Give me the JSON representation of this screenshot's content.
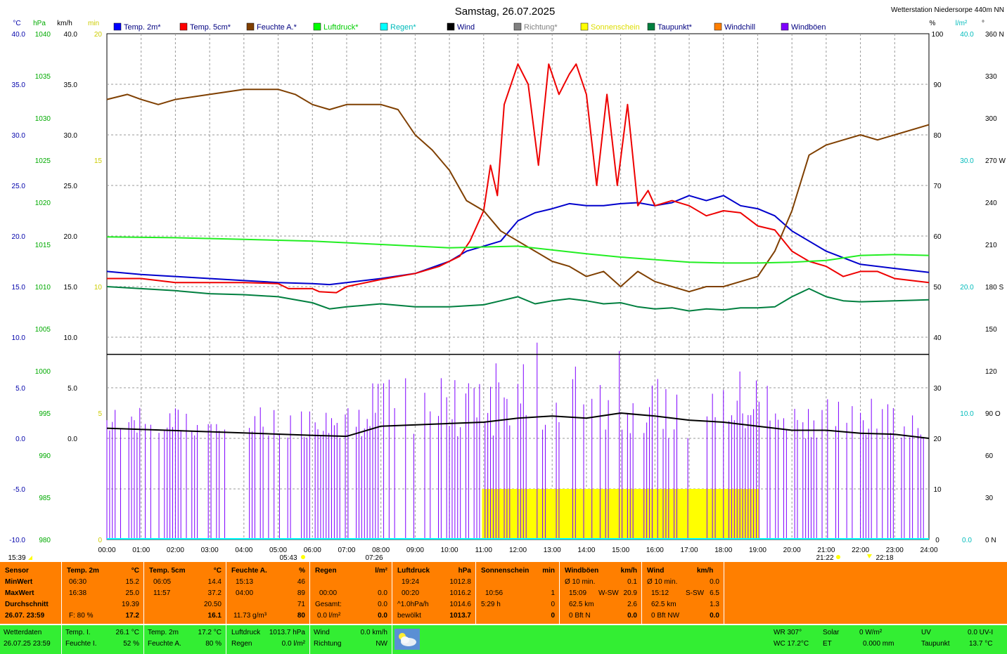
{
  "header": {
    "date_title": "Samstag, 26.07.2025",
    "station": "Wetterstation Niedersorpe 440m NN"
  },
  "units": {
    "celsius": "°C",
    "hpa": "hPa",
    "kmh": "km/h",
    "min": "min",
    "percent": "%",
    "lm2": "l/m²",
    "degree": "°"
  },
  "legend": [
    {
      "label": "Temp. 2m*",
      "color": "#0000ff"
    },
    {
      "label": "Temp. 5cm*",
      "color": "#ff0000"
    },
    {
      "label": "Feuchte A.*",
      "color": "#7f3f00"
    },
    {
      "label": "Luftdruck*",
      "color": "#00ff00"
    },
    {
      "label": "Regen*",
      "color": "#00ffff"
    },
    {
      "label": "Wind",
      "color": "#000000"
    },
    {
      "label": "Richtung*",
      "color": "#808080"
    },
    {
      "label": "Sonnenschein",
      "color": "#ffff00"
    },
    {
      "label": "Taupunkt*",
      "color": "#007f3f"
    },
    {
      "label": "Windchill",
      "color": "#ff7f00"
    },
    {
      "label": "Windböen",
      "color": "#7f00ff"
    }
  ],
  "axes": {
    "celsius_ticks": [
      "40.0",
      "35.0",
      "30.0",
      "25.0",
      "20.0",
      "15.0",
      "10.0",
      "5.0",
      "0.0",
      "-5.0",
      "-10.0"
    ],
    "hpa_ticks": [
      "1040",
      "1035",
      "1030",
      "1025",
      "1020",
      "1015",
      "1010",
      "1005",
      "1000",
      "995",
      "990",
      "985",
      "980"
    ],
    "kmh_ticks": [
      "40.0",
      "35.0",
      "30.0",
      "25.0",
      "20.0",
      "15.0",
      "10.0",
      "5.0",
      "0.0"
    ],
    "min_ticks": [
      "20",
      "15",
      "10",
      "5",
      "0"
    ],
    "percent_ticks": [
      "100",
      "90",
      "80",
      "70",
      "60",
      "50",
      "40",
      "30",
      "20",
      "10",
      "0"
    ],
    "rain_ticks": [
      "40.0",
      "30.0",
      "20.0",
      "10.0",
      "0.0"
    ],
    "direction_ticks": [
      "360 N",
      "330",
      "300",
      "270 W",
      "240",
      "210",
      "180 S",
      "150",
      "120",
      "90 O",
      "60",
      "30",
      "0 N"
    ],
    "time_ticks": [
      "00:00",
      "01:00",
      "02:00",
      "03:00",
      "04:00",
      "05:00",
      "06:00",
      "07:00",
      "08:00",
      "09:00",
      "10:00",
      "11:00",
      "12:00",
      "13:00",
      "14:00",
      "15:00",
      "16:00",
      "17:00",
      "18:00",
      "19:00",
      "20:00",
      "21:00",
      "22:00",
      "23:00",
      "24:00"
    ]
  },
  "markers": {
    "left_time": "15:39",
    "sunrise": "05:43",
    "moonrise": "07:26",
    "sunset": "21:22",
    "moonset": "22:18"
  },
  "chart_data": {
    "type": "line",
    "x_range": [
      0,
      24
    ],
    "temp_range": [
      -10,
      40
    ],
    "percent_range": [
      0,
      100
    ],
    "series": [
      {
        "name": "Temp. 2m*",
        "x": [
          0,
          1,
          2,
          3,
          4,
          5,
          6,
          6.5,
          7,
          8,
          9,
          10,
          10.5,
          11,
          11.5,
          12,
          12.5,
          13,
          13.5,
          14,
          14.5,
          15,
          15.5,
          16,
          16.5,
          17,
          17.5,
          18,
          18.5,
          19,
          19.5,
          20,
          21,
          22,
          23,
          24
        ],
        "y": [
          16.5,
          16.2,
          16.0,
          15.8,
          15.6,
          15.4,
          15.3,
          15.2,
          15.4,
          15.8,
          16.3,
          17.5,
          18.5,
          19.0,
          19.5,
          21.5,
          22.3,
          22.7,
          23.2,
          23.0,
          23.0,
          23.2,
          23.3,
          23.0,
          23.3,
          24.0,
          23.5,
          24.0,
          23.0,
          22.7,
          22.0,
          20.5,
          18.5,
          17.2,
          16.8,
          16.4
        ]
      },
      {
        "name": "Temp. 5cm*",
        "x": [
          0,
          1,
          2,
          3,
          4,
          5,
          5.3,
          6,
          6.2,
          6.7,
          7,
          8,
          9,
          9.7,
          10.3,
          10.6,
          11,
          11.2,
          11.4,
          11.6,
          12,
          12.3,
          12.6,
          12.9,
          13.2,
          13.5,
          13.7,
          14,
          14.3,
          14.6,
          14.9,
          15.2,
          15.5,
          15.8,
          16,
          16.5,
          17,
          17.5,
          18,
          18.5,
          19,
          19.5,
          20,
          20.5,
          21,
          21.5,
          22,
          22.5,
          23,
          24
        ],
        "y": [
          15.8,
          15.8,
          15.4,
          15.4,
          15.4,
          15.3,
          14.8,
          14.8,
          14.5,
          14.4,
          15.0,
          15.7,
          16.3,
          17.0,
          18.0,
          19.5,
          22.5,
          27.0,
          24.0,
          33.0,
          37.0,
          35.0,
          27.0,
          37.0,
          34.0,
          36.0,
          37.0,
          34.0,
          25.0,
          34.0,
          25.0,
          33.0,
          23.0,
          24.5,
          23.0,
          23.5,
          23.0,
          22.0,
          22.5,
          22.3,
          21.0,
          20.6,
          18.5,
          17.5,
          17.0,
          16.0,
          16.5,
          16.5,
          15.8,
          15.4
        ]
      },
      {
        "name": "Feuchte A.*",
        "x": [
          0,
          0.6,
          1,
          1.5,
          2,
          3,
          4,
          5,
          5.5,
          6,
          6.5,
          7,
          8,
          8.5,
          9,
          9.5,
          10,
          10.5,
          11,
          11.5,
          12,
          12.5,
          13,
          13.5,
          14,
          14.5,
          15,
          15.5,
          16,
          16.5,
          17,
          17.5,
          18,
          18.5,
          19,
          19.5,
          20,
          20.5,
          21,
          21.5,
          22,
          22.5,
          23,
          24
        ],
        "y": [
          87,
          88,
          87,
          86,
          87,
          88,
          89,
          89,
          88,
          86,
          85,
          86,
          86,
          85,
          80,
          77,
          73,
          67,
          65,
          61,
          59,
          57,
          55,
          54,
          52,
          53,
          50,
          53,
          51,
          50,
          49,
          50,
          50,
          51,
          52,
          57,
          65,
          76,
          78,
          79,
          80,
          79,
          80,
          82
        ]
      },
      {
        "name": "Luftdruck*",
        "x": [
          0,
          2,
          4,
          6,
          8,
          10,
          12,
          14,
          15,
          16,
          17,
          18,
          19,
          20,
          21,
          22,
          23,
          24
        ],
        "y": [
          1015.9,
          1015.8,
          1015.6,
          1015.4,
          1015.0,
          1014.6,
          1014.8,
          1013.9,
          1013.5,
          1013.2,
          1012.9,
          1012.8,
          1012.8,
          1012.9,
          1013.1,
          1013.7,
          1013.8,
          1013.7
        ]
      },
      {
        "name": "Taupunkt*",
        "x": [
          0,
          1,
          2,
          3,
          4,
          5,
          6,
          6.5,
          7,
          8,
          9,
          10,
          11,
          11.5,
          12,
          12.5,
          13,
          13.5,
          14,
          14.5,
          15,
          15.5,
          16,
          16.5,
          17,
          17.5,
          18,
          18.5,
          19,
          19.5,
          20,
          20.5,
          21,
          21.5,
          22,
          23,
          24
        ],
        "y": [
          15.0,
          14.8,
          14.6,
          14.3,
          14.2,
          14.0,
          13.4,
          12.8,
          13.0,
          13.3,
          13.0,
          13.0,
          13.2,
          13.6,
          14.0,
          13.3,
          13.6,
          13.8,
          13.6,
          13.3,
          13.4,
          13.0,
          12.8,
          12.9,
          12.6,
          12.8,
          12.7,
          12.9,
          12.9,
          13.0,
          14.0,
          14.8,
          14.0,
          13.6,
          13.5,
          13.6,
          13.7
        ]
      },
      {
        "name": "Wind",
        "x": [
          0,
          6,
          7,
          8,
          11,
          12,
          13,
          14,
          15,
          16,
          17,
          18,
          19,
          20,
          21,
          22,
          23,
          24
        ],
        "y": [
          1.0,
          0.3,
          0.2,
          1.2,
          1.6,
          2.0,
          2.2,
          2.0,
          2.5,
          2.2,
          1.8,
          1.6,
          1.2,
          0.8,
          0.8,
          0.5,
          0.4,
          0.0
        ]
      }
    ],
    "sunshine_blocks": [
      [
        10.95,
        11.3
      ],
      [
        11.3,
        14.6
      ],
      [
        14.6,
        17.0
      ],
      [
        17.0,
        18.1
      ],
      [
        18.1,
        19.05
      ]
    ],
    "reference_line_kmh": 8.3
  },
  "table": {
    "sensor": {
      "title": "Sensor",
      "rows": [
        "MinWert",
        "MaxWert",
        "Durchschnitt",
        "26.07. 23:59"
      ]
    },
    "temp2m": {
      "title": "Temp. 2m",
      "unit": "°C",
      "min_time": "06:30",
      "min": "15.2",
      "max_time": "16:38",
      "max": "25.0",
      "avg": "19.39",
      "note": "F: 80 %",
      "current": "17.2"
    },
    "temp5cm": {
      "title": "Temp. 5cm",
      "unit": "°C",
      "min_time": "06:05",
      "min": "14.4",
      "max_time": "11:57",
      "max": "37.2",
      "avg": "20.50",
      "current": "16.1"
    },
    "feuchte": {
      "title": "Feuchte A.",
      "unit": "%",
      "min_time": "15:13",
      "min": "46",
      "max_time": "04:00",
      "max": "89",
      "avg": "71",
      "note": "11.73 g/m³",
      "current": "80"
    },
    "regen": {
      "title": "Regen",
      "unit": "l/m²",
      "r1_label": "00:00",
      "r1": "0.0",
      "r2_label": "Gesamt:",
      "r2": "0.0",
      "note": "0.0 l/m²",
      "current": "0.0",
      "top": "0.0"
    },
    "luftdruck": {
      "title": "Luftdruck",
      "unit": "hPa",
      "min_time": "19:24",
      "min": "1012.8",
      "max_time": "00:20",
      "max": "1016.2",
      "trend_label": "^1.0hPa/h",
      "trend": "1014.6",
      "note": "bewölkt",
      "current": "1013.7"
    },
    "sonne": {
      "title": "Sonnenschein",
      "unit": "min",
      "r1_label": "10:56",
      "r1": "1",
      "r2_label": "5:29 h",
      "r2": "0",
      "current": "0"
    },
    "boeen": {
      "title": "Windböen",
      "unit": "km/h",
      "r0_label": "Ø 10 min.",
      "r0": "0.1",
      "r1_time": "15:09",
      "r1_dir": "W-SW",
      "r1": "20.9",
      "r2_label": "62.5 km",
      "r2": "2.6",
      "r3_label": "0 Bft N",
      "current": "0.0"
    },
    "wind": {
      "title": "Wind",
      "unit": "km/h",
      "r0_label": "Ø 10 min.",
      "r0": "0.0",
      "r1_time": "15:12",
      "r1_dir": "S-SW",
      "r1": "6.5",
      "r2_label": "62.5 km",
      "r2": "1.3",
      "r3_label": "0 Bft NW",
      "current": "0.0"
    }
  },
  "status": {
    "wetterdaten": "Wetterdaten",
    "datetime": "26.07.25 23:59",
    "temp_i_label": "Temp. I.",
    "temp_i": "26.1 °C",
    "feuchte_i_label": "Feuchte I.",
    "feuchte_i": "52 %",
    "temp_2m_label": "Temp. 2m",
    "temp_2m": "17.2 °C",
    "feuchte_a_label": "Feuchte A.",
    "feuchte_a": "80 %",
    "luftdruck_label": "Luftdruck",
    "luftdruck": "1013.7 hPa",
    "regen_label": "Regen",
    "regen": "0.0 l/m²",
    "wind_label": "Wind",
    "wind": "0.0 km/h",
    "richtung_label": "Richtung",
    "richtung": "NW",
    "wr": "WR 307°",
    "wc": "WC 17.2°C",
    "solar_label": "Solar",
    "solar": "0 W/m²",
    "et_label": "ET",
    "et": "0.000 mm",
    "uv_label": "UV",
    "uv": "0.0 UV-I",
    "taupunkt_label": "Taupunkt",
    "taupunkt": "13.7 °C"
  }
}
